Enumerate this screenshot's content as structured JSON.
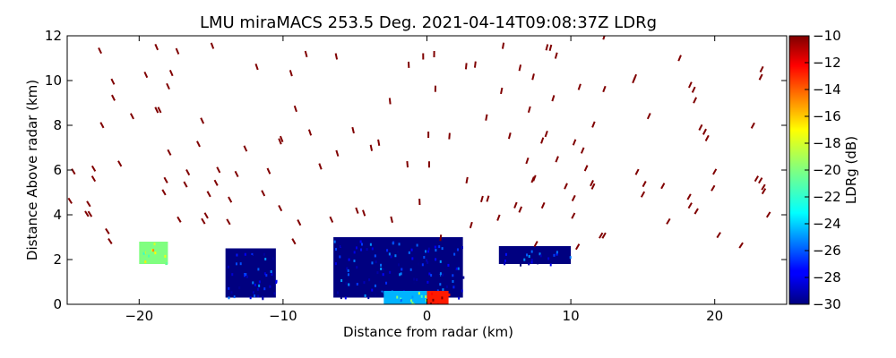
{
  "chart_data": {
    "type": "heatmap",
    "title": "LMU miraMACS 253.5 Deg. 2021-04-14T09:08:37Z  LDRg",
    "xlabel": "Distance from radar (km)",
    "ylabel": "Distance Above radar  (km)",
    "xlim": [
      -25,
      25
    ],
    "ylim": [
      0,
      12
    ],
    "xticks": [
      -20,
      -10,
      0,
      10,
      20
    ],
    "yticks": [
      0,
      2,
      4,
      6,
      8,
      10,
      12
    ],
    "xtick_labels": [
      "−20",
      "−10",
      "0",
      "10",
      "20"
    ],
    "ytick_labels": [
      "0",
      "2",
      "4",
      "6",
      "8",
      "10",
      "12"
    ],
    "grid": false,
    "colorbar": {
      "label": "LDRg (dB)",
      "range": [
        -30,
        -10
      ],
      "ticks": [
        -10,
        -12,
        -14,
        -16,
        -18,
        -20,
        -22,
        -24,
        -26,
        -28,
        -30
      ],
      "tick_labels": [
        "−10",
        "−12",
        "−14",
        "−16",
        "−18",
        "−20",
        "−22",
        "−24",
        "−26",
        "−28",
        "−30"
      ],
      "colormap": "jet"
    },
    "regions": [
      {
        "x_range": [
          -6.5,
          2.5
        ],
        "y_range": [
          0.3,
          3.0
        ],
        "ldr": -30
      },
      {
        "x_range": [
          -14,
          -10.5
        ],
        "y_range": [
          0.3,
          2.5
        ],
        "ldr": -30
      },
      {
        "x_range": [
          5,
          10
        ],
        "y_range": [
          1.8,
          2.6
        ],
        "ldr": -30
      },
      {
        "x_range": [
          -0.3,
          1.5
        ],
        "y_range": [
          0,
          0.6
        ],
        "ldr": -13
      },
      {
        "x_range": [
          -20,
          -18
        ],
        "y_range": [
          1.8,
          2.8
        ],
        "ldr": -20
      },
      {
        "x_range": [
          -3,
          0
        ],
        "y_range": [
          0,
          0.6
        ],
        "ldr": -24
      }
    ],
    "sparse_echo_ldr": -10
  }
}
